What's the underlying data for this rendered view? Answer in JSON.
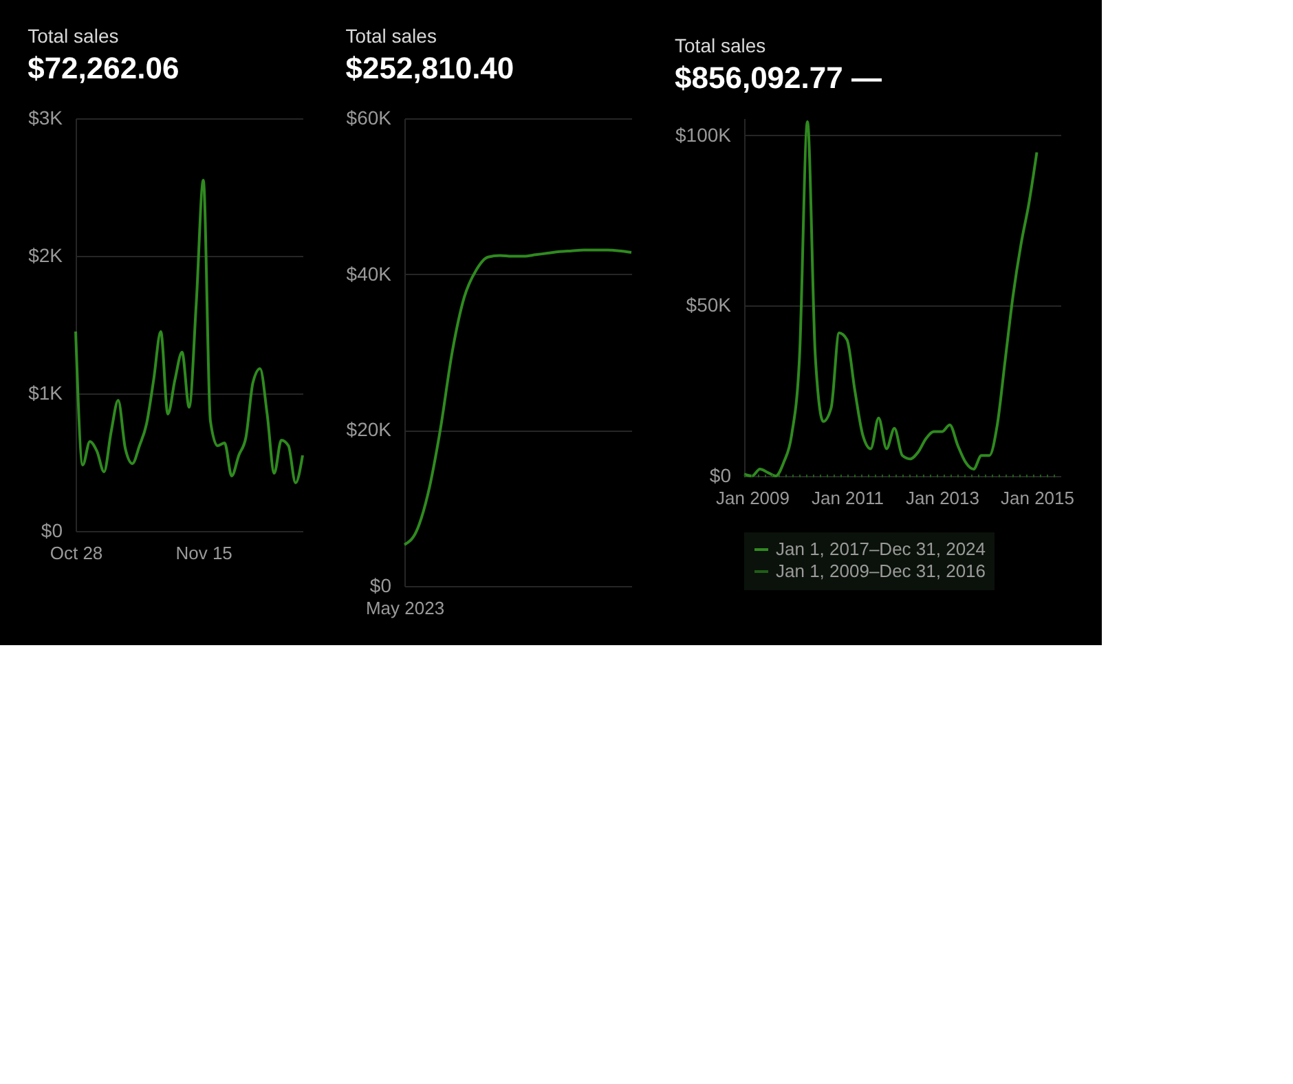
{
  "chart_data": [
    {
      "type": "line",
      "title": "Total sales",
      "subtitle": "$72,262.06",
      "categories": [
        "Oct 28",
        null,
        null,
        null,
        null,
        null,
        null,
        null,
        null,
        null,
        null,
        null,
        null,
        null,
        null,
        null,
        null,
        null,
        "Nov 15",
        null,
        null,
        null,
        null,
        null,
        null,
        null,
        null,
        null,
        null,
        null,
        null,
        null,
        null
      ],
      "series": [
        {
          "color": "#2f8a1f",
          "values": [
            1450,
            480,
            650,
            580,
            430,
            720,
            950,
            600,
            490,
            620,
            780,
            1100,
            1450,
            850,
            1100,
            1300,
            900,
            1650,
            2550,
            800,
            620,
            640,
            400,
            550,
            680,
            1080,
            1180,
            850,
            420,
            660,
            620,
            350,
            550
          ]
        }
      ],
      "ylim": [
        0,
        3000
      ],
      "yticks": [
        {
          "value": 0,
          "label": "$0"
        },
        {
          "value": 1000,
          "label": "$1K"
        },
        {
          "value": 2000,
          "label": "$2K"
        },
        {
          "value": 3000,
          "label": "$3K"
        }
      ],
      "grid": "y",
      "line_style": "solid"
    },
    {
      "type": "line",
      "title": "Total sales",
      "subtitle": "$252,810.40",
      "categories": [
        "May 2023",
        null,
        null,
        null,
        null,
        null,
        null,
        null,
        null,
        null,
        null,
        null,
        null,
        null,
        null,
        null,
        null,
        null,
        null,
        null
      ],
      "series": [
        {
          "color": "#2f8a1f",
          "values": [
            5300,
            7000,
            12000,
            20000,
            30000,
            37000,
            40500,
            42200,
            42400,
            42300,
            42300,
            42500,
            42700,
            42900,
            43000,
            43100,
            43100,
            43100,
            43000,
            42800
          ]
        }
      ],
      "ylim": [
        0,
        60000
      ],
      "yticks": [
        {
          "value": 0,
          "label": "$0"
        },
        {
          "value": 20000,
          "label": "$20K"
        },
        {
          "value": 40000,
          "label": "$40K"
        },
        {
          "value": 60000,
          "label": "$60K"
        }
      ],
      "grid": "y",
      "line_style": "solid"
    },
    {
      "type": "line",
      "title": "Total sales",
      "subtitle": "$856,092.77 —",
      "categories": [
        null,
        "Jan 2009",
        null,
        null,
        null,
        null,
        null,
        null,
        null,
        null,
        null,
        null,
        null,
        "Jan 2011",
        null,
        null,
        null,
        null,
        null,
        null,
        null,
        null,
        null,
        null,
        null,
        "Jan 2013",
        null,
        null,
        null,
        null,
        null,
        null,
        null,
        null,
        null,
        null,
        null,
        "Jan 2015",
        null,
        null,
        null
      ],
      "series": [
        {
          "name": "Jan 1, 2017–Dec 31, 2024",
          "color": "#2f8a1f",
          "line_style": "solid",
          "values": [
            500,
            0,
            2000,
            1000,
            0,
            4000,
            12000,
            35000,
            104000,
            35000,
            16000,
            20000,
            42000,
            40000,
            25000,
            12000,
            8000,
            17000,
            8000,
            14000,
            6000,
            5000,
            7000,
            11000,
            13000,
            13000,
            15000,
            9000,
            4000,
            2000,
            6000,
            6000,
            15000,
            34000,
            53000,
            68000,
            80000,
            95000,
            null,
            null,
            null
          ]
        },
        {
          "name": "Jan 1, 2009–Dec 31, 2016",
          "color": "#1f5e16",
          "line_style": "dotted",
          "values": [
            0,
            0,
            0,
            0,
            0,
            0,
            0,
            0,
            0,
            0,
            0,
            0,
            0,
            0,
            0,
            0,
            0,
            0,
            0,
            0,
            0,
            0,
            0,
            0,
            0,
            0,
            0,
            0,
            0,
            0,
            0,
            0,
            0,
            0,
            0,
            0,
            0,
            0,
            0,
            0,
            0
          ]
        }
      ],
      "ylim": [
        0,
        105000
      ],
      "yticks": [
        {
          "value": 0,
          "label": "$0"
        },
        {
          "value": 50000,
          "label": "$50K"
        },
        {
          "value": 100000,
          "label": "$100K"
        }
      ],
      "grid": "y",
      "legend": "bottom"
    }
  ]
}
